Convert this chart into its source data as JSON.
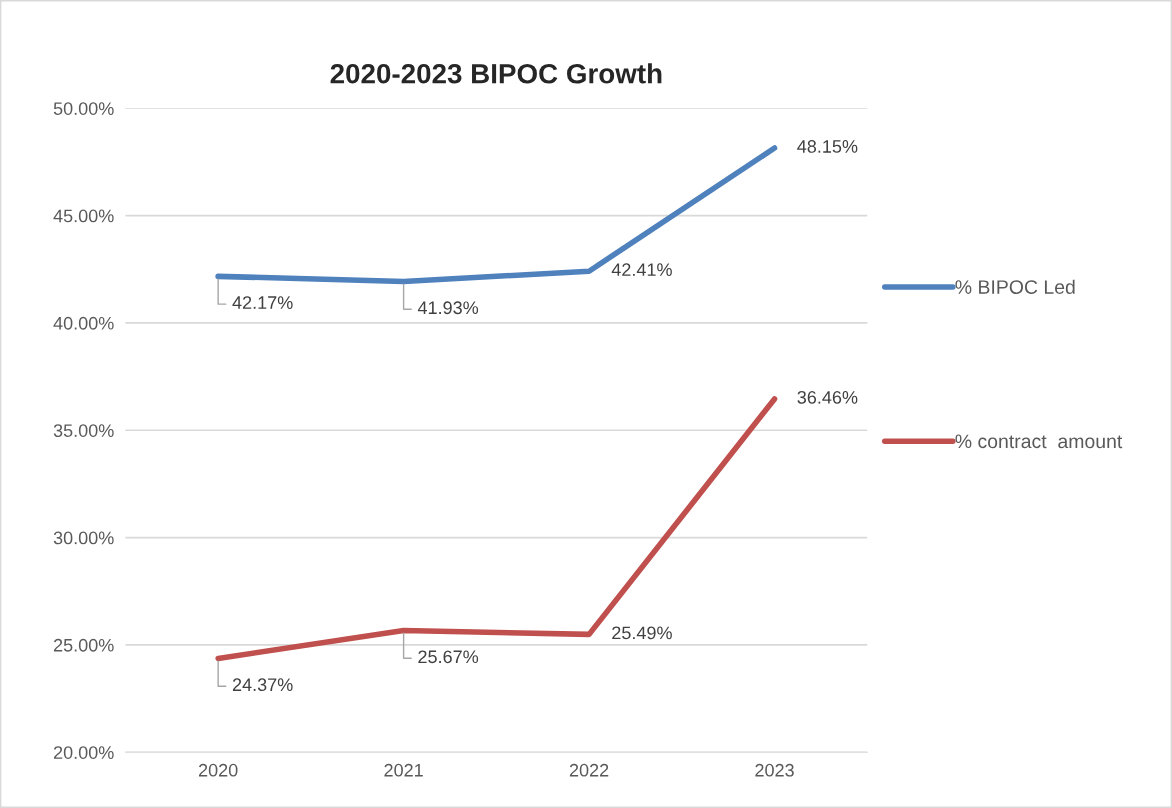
{
  "chart_data": {
    "type": "line",
    "title": "2020-2023 BIPOC Growth",
    "categories": [
      "2020",
      "2021",
      "2022",
      "2023"
    ],
    "series": [
      {
        "name": "% BIPOC Led",
        "color": "#4f81bd",
        "values": [
          42.17,
          41.93,
          42.41,
          48.15
        ],
        "value_labels": [
          "42.17%",
          "41.93%",
          "42.41%",
          "48.15%"
        ]
      },
      {
        "name": "% contract  amount",
        "color": "#c0504d",
        "values": [
          24.37,
          25.67,
          25.49,
          36.46
        ],
        "value_labels": [
          "24.37%",
          "25.67%",
          "25.49%",
          "36.46%"
        ]
      }
    ],
    "ylim": [
      20,
      50
    ],
    "yticks": [
      {
        "value": 20,
        "label": "20.00%"
      },
      {
        "value": 25,
        "label": "25.00%"
      },
      {
        "value": 30,
        "label": "30.00%"
      },
      {
        "value": 35,
        "label": "35.00%"
      },
      {
        "value": 40,
        "label": "40.00%"
      },
      {
        "value": 45,
        "label": "45.00%"
      },
      {
        "value": 50,
        "label": "50.00%"
      }
    ],
    "grid": "y",
    "legend": "right",
    "marker": "none",
    "line_style": "solid"
  }
}
